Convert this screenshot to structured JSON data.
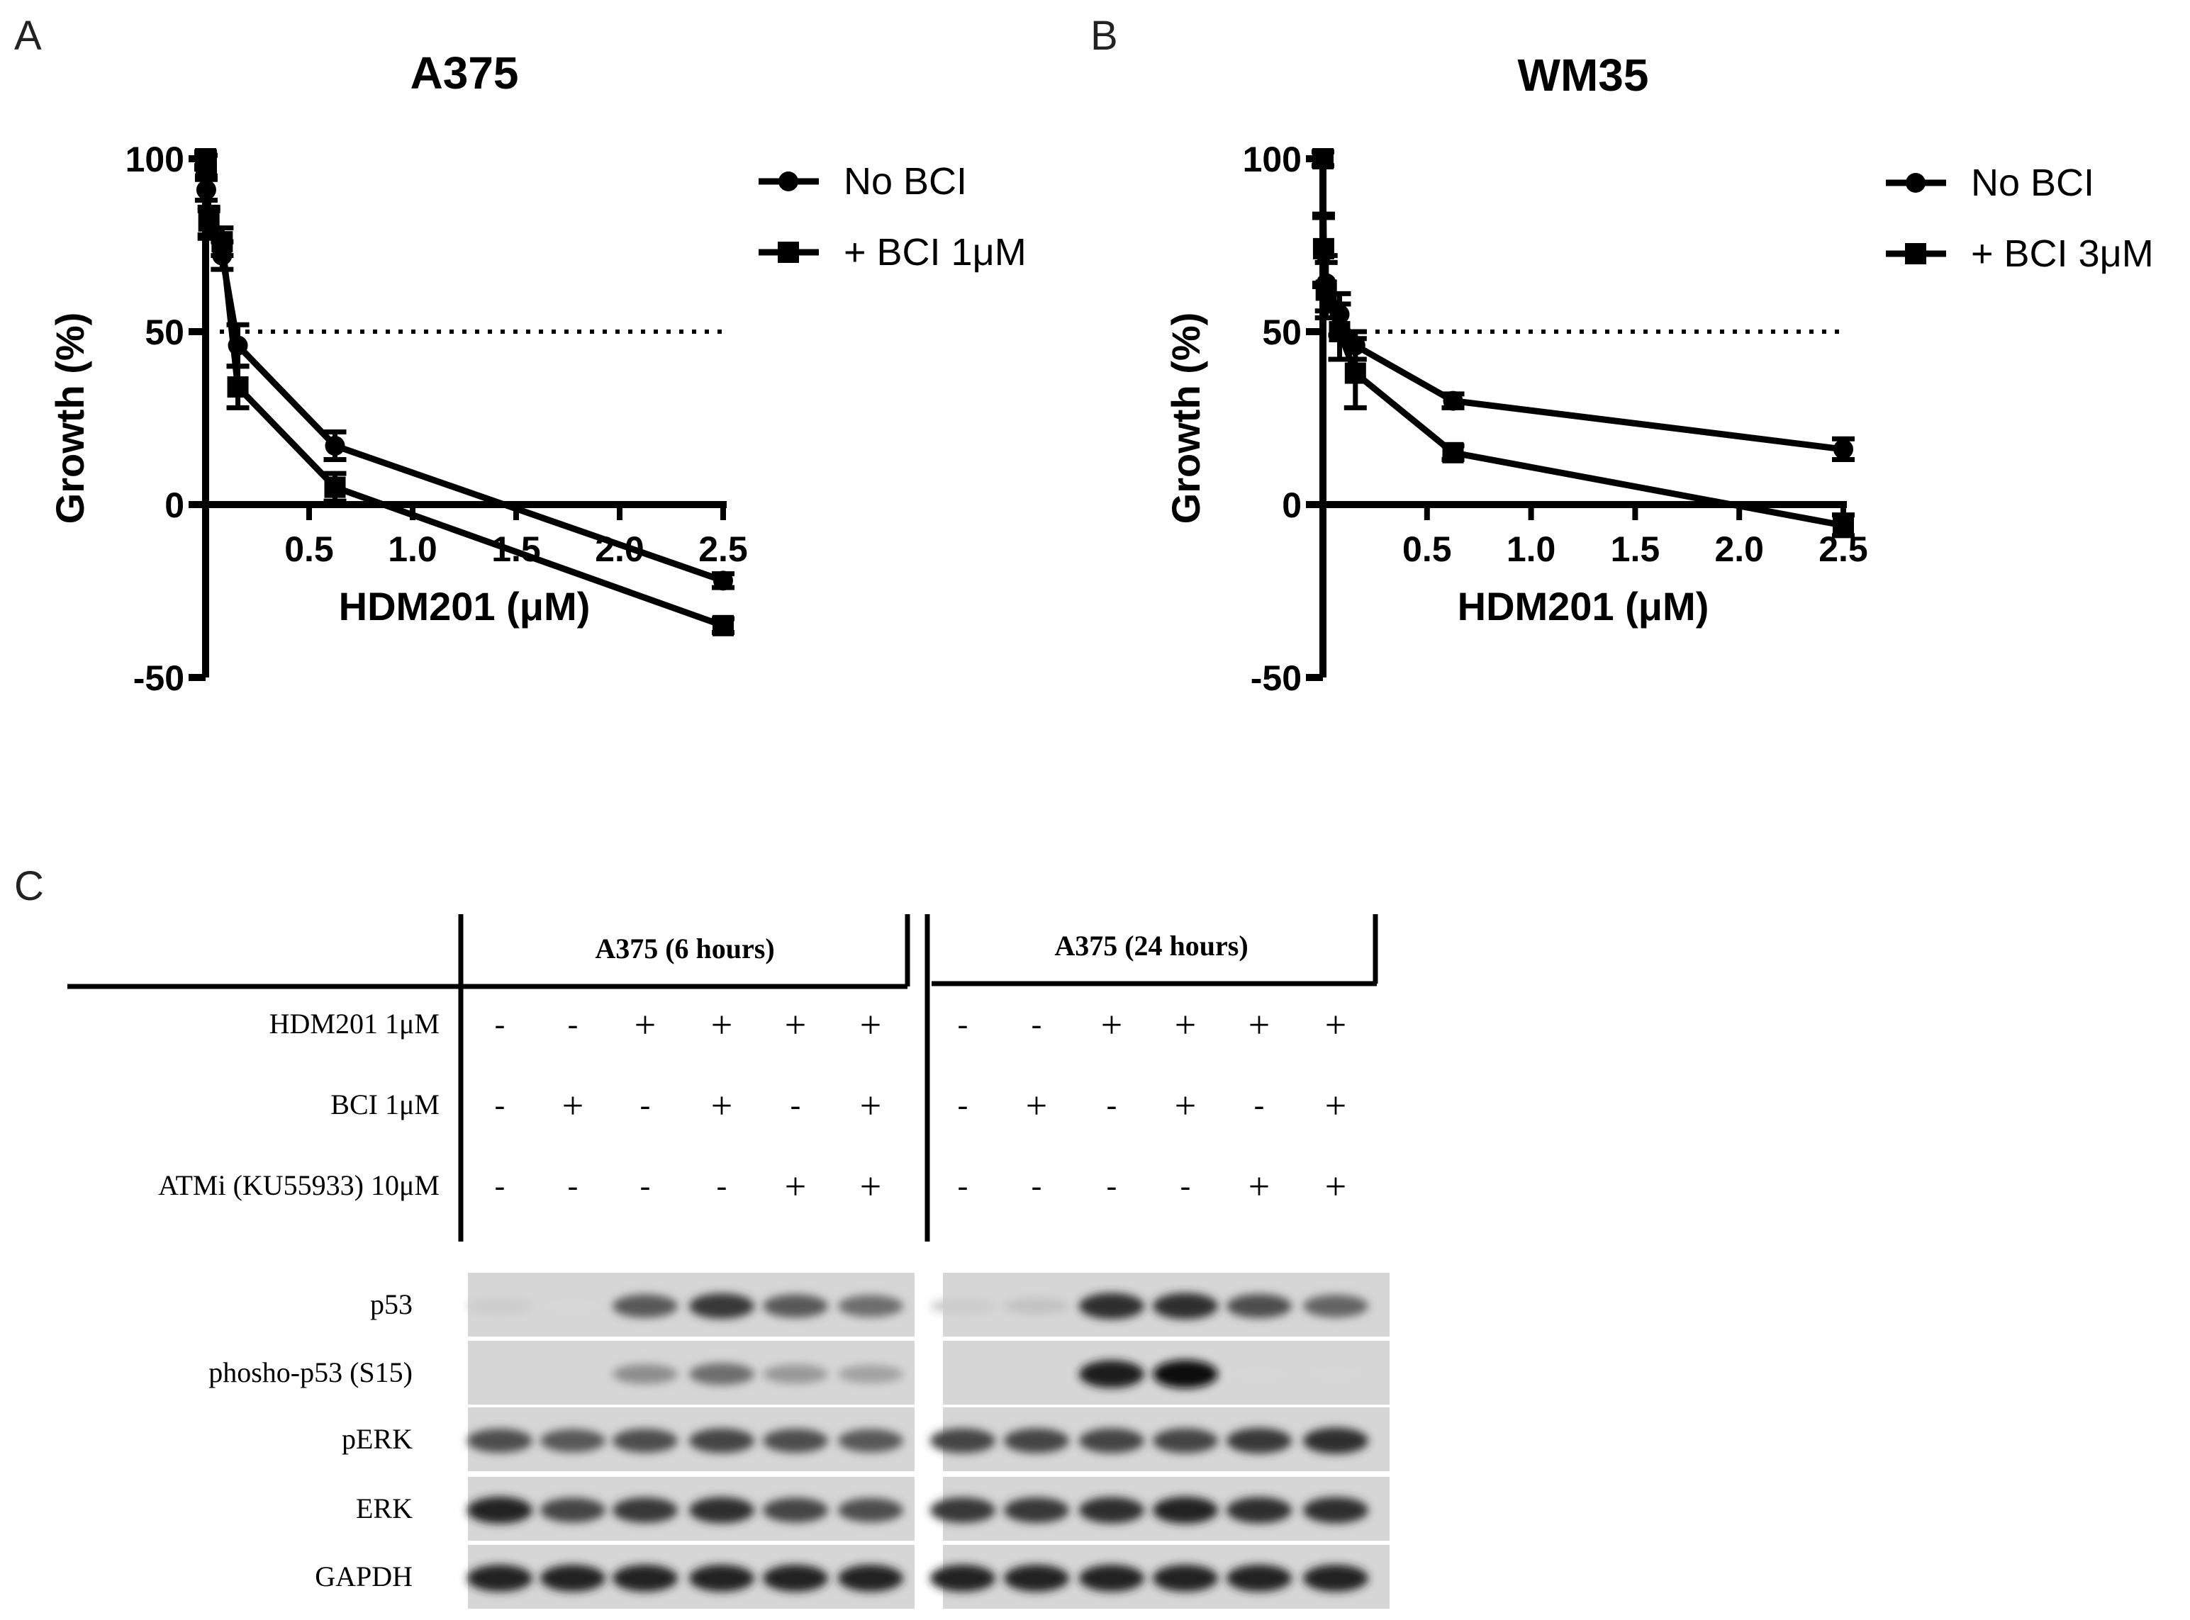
{
  "panel_letters": [
    "A",
    "B",
    "C"
  ],
  "chart_data": [
    {
      "type": "line",
      "title": "A375",
      "xlabel": "HDM201 (μM)",
      "ylabel": "Growth (%)",
      "xlim": [
        0,
        2.5
      ],
      "ylim": [
        -50,
        100
      ],
      "xticks": [
        "0.5",
        "1.0",
        "1.5",
        "2.0",
        "2.5"
      ],
      "yticks": [
        "100",
        "50",
        "0",
        "-50"
      ],
      "reference_line": 50,
      "legend_position": "top-right",
      "series": [
        {
          "name": "No BCI",
          "marker": "circle",
          "x": [
            0,
            0.0032,
            0.016,
            0.08,
            0.156,
            0.625,
            2.5
          ],
          "y": [
            99,
            91,
            81,
            72,
            46,
            17,
            -22
          ],
          "err": [
            2,
            3,
            4,
            4,
            6,
            4,
            2
          ]
        },
        {
          "name": "+ BCI 1μM",
          "marker": "square",
          "x": [
            0,
            0.0032,
            0.016,
            0.08,
            0.156,
            0.625,
            2.5
          ],
          "y": [
            100,
            98,
            82,
            76,
            34,
            5,
            -35
          ],
          "err": [
            2,
            3,
            4,
            4,
            6,
            4,
            2
          ]
        }
      ]
    },
    {
      "type": "line",
      "title": "WM35",
      "xlabel": "HDM201 (μM)",
      "ylabel": "Growth (%)",
      "xlim": [
        0,
        2.5
      ],
      "ylim": [
        -50,
        100
      ],
      "xticks": [
        "0.5",
        "1.0",
        "1.5",
        "2.0",
        "2.5"
      ],
      "yticks": [
        "100",
        "50",
        "0",
        "-50"
      ],
      "reference_line": 50,
      "legend_position": "top-right",
      "series": [
        {
          "name": "No BCI",
          "marker": "circle",
          "x": [
            0,
            0.0032,
            0.016,
            0.08,
            0.156,
            0.625,
            2.5
          ],
          "y": [
            100,
            73,
            64,
            55,
            46,
            30,
            16
          ],
          "err": [
            2,
            10,
            8,
            6,
            4,
            2,
            3
          ]
        },
        {
          "name": "+ BCI 3μM",
          "marker": "square",
          "x": [
            0,
            0.0032,
            0.016,
            0.08,
            0.156,
            0.625,
            2.5
          ],
          "y": [
            100,
            74,
            62,
            50,
            38,
            15,
            -6
          ],
          "err": [
            2,
            10,
            8,
            8,
            10,
            2,
            3
          ]
        }
      ]
    }
  ],
  "blot": {
    "groups": [
      "A375 (6 hours)",
      "A375 (24 hours)"
    ],
    "conditions": [
      {
        "label": "HDM201 1μM",
        "values": [
          "-",
          "-",
          "+",
          "+",
          "+",
          "+",
          "-",
          "-",
          "+",
          "+",
          "+",
          "+"
        ]
      },
      {
        "label": "BCI 1μM",
        "values": [
          "-",
          "+",
          "-",
          "+",
          "-",
          "+",
          "-",
          "+",
          "-",
          "+",
          "-",
          "+"
        ]
      },
      {
        "label": "ATMi (KU55933) 10μM",
        "values": [
          "-",
          "-",
          "-",
          "-",
          "+",
          "+",
          "-",
          "-",
          "-",
          "-",
          "+",
          "+"
        ]
      }
    ],
    "rows": [
      {
        "label": "p53",
        "intensity": [
          0.1,
          0.05,
          0.65,
          0.8,
          0.65,
          0.55,
          0.1,
          0.15,
          0.85,
          0.85,
          0.7,
          0.6
        ]
      },
      {
        "label": "phosho-p53 (S15)",
        "intensity": [
          0.0,
          0.0,
          0.4,
          0.55,
          0.35,
          0.3,
          0.0,
          0.0,
          0.95,
          1.0,
          0.05,
          0.05
        ]
      },
      {
        "label": "pERK",
        "intensity": [
          0.7,
          0.65,
          0.7,
          0.75,
          0.7,
          0.65,
          0.75,
          0.75,
          0.75,
          0.75,
          0.8,
          0.85
        ]
      },
      {
        "label": "ERK",
        "intensity": [
          0.9,
          0.75,
          0.8,
          0.85,
          0.75,
          0.7,
          0.8,
          0.8,
          0.85,
          0.9,
          0.85,
          0.85
        ]
      },
      {
        "label": "GAPDH",
        "intensity": [
          0.9,
          0.9,
          0.9,
          0.9,
          0.9,
          0.9,
          0.9,
          0.9,
          0.9,
          0.9,
          0.9,
          0.9
        ]
      }
    ]
  }
}
